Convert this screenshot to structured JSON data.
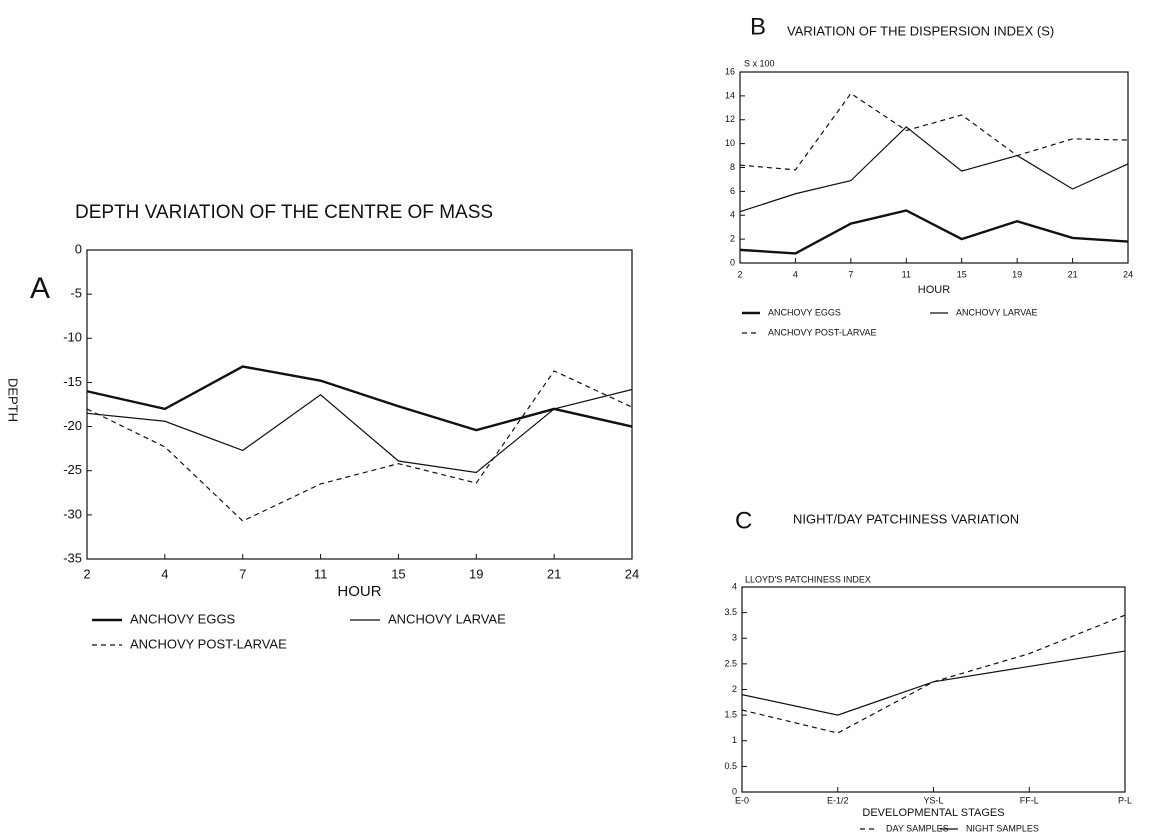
{
  "chart_data": [
    {
      "type": "line",
      "panel": "A",
      "title": "DEPTH VARIATION OF THE CENTRE OF MASS",
      "y_label": "DEPTH",
      "x_label": "HOUR",
      "categories": [
        "2",
        "4",
        "7",
        "11",
        "15",
        "19",
        "21",
        "24"
      ],
      "ylim": [
        -35,
        0
      ],
      "yticks": [
        0,
        -5,
        -10,
        -15,
        -20,
        -25,
        -30,
        -35
      ],
      "grid": false,
      "series": [
        {
          "name": "ANCHOVY EGGS",
          "color": "#111111",
          "style": "thick",
          "values": [
            -16,
            -18,
            -13.2,
            -14.8,
            -17.7,
            -20.4,
            -18,
            -20
          ]
        },
        {
          "name": "ANCHOVY LARVAE",
          "color": "#111111",
          "style": "thin",
          "values": [
            -18.5,
            -19.4,
            -22.7,
            -16.4,
            -23.9,
            -25.2,
            -18,
            -15.8
          ]
        },
        {
          "name": "ANCHOVY POST-LARVAE",
          "color": "#111111",
          "style": "dashed",
          "values": [
            -18,
            -22.3,
            -30.7,
            -26.5,
            -24.2,
            -26.4,
            -13.7,
            -17.8
          ]
        }
      ]
    },
    {
      "type": "line",
      "panel": "B",
      "title": "VARIATION OF THE DISPERSION INDEX (S)",
      "y_label": "S x 100",
      "x_label": "HOUR",
      "categories": [
        "2",
        "4",
        "7",
        "11",
        "15",
        "19",
        "21",
        "24"
      ],
      "ylim": [
        0,
        16
      ],
      "yticks": [
        0,
        2,
        4,
        6,
        8,
        10,
        12,
        14,
        16
      ],
      "grid": false,
      "series": [
        {
          "name": "ANCHOVY EGGS",
          "color": "#111111",
          "style": "thick",
          "values": [
            1.1,
            0.8,
            3.3,
            4.4,
            2.0,
            3.5,
            2.1,
            1.8
          ]
        },
        {
          "name": "ANCHOVY LARVAE",
          "color": "#111111",
          "style": "thin",
          "values": [
            4.3,
            5.8,
            6.9,
            11.4,
            7.7,
            9.0,
            6.2,
            8.3
          ]
        },
        {
          "name": "ANCHOVY POST-LARVAE",
          "color": "#111111",
          "style": "dashed",
          "values": [
            8.2,
            7.8,
            14.2,
            11.1,
            12.4,
            9.0,
            10.4,
            10.3
          ]
        }
      ]
    },
    {
      "type": "line",
      "panel": "C",
      "title": "NIGHT/DAY PATCHINESS VARIATION",
      "y_label": "LLOYD'S PATCHINESS INDEX",
      "x_label": "DEVELOPMENTAL STAGES",
      "categories": [
        "E-0",
        "E-1/2",
        "YS-L",
        "FF-L",
        "P-L"
      ],
      "ylim": [
        0,
        4
      ],
      "yticks": [
        0,
        0.5,
        1,
        1.5,
        2,
        2.5,
        3,
        3.5,
        4
      ],
      "grid": false,
      "series": [
        {
          "name": "DAY SAMPLES",
          "color": "#111111",
          "style": "dashed",
          "values": [
            1.6,
            1.15,
            2.15,
            2.7,
            3.45
          ]
        },
        {
          "name": "NIGHT SAMPLES",
          "color": "#111111",
          "style": "thin",
          "values": [
            1.9,
            1.5,
            2.15,
            2.45,
            2.75
          ]
        }
      ]
    }
  ]
}
